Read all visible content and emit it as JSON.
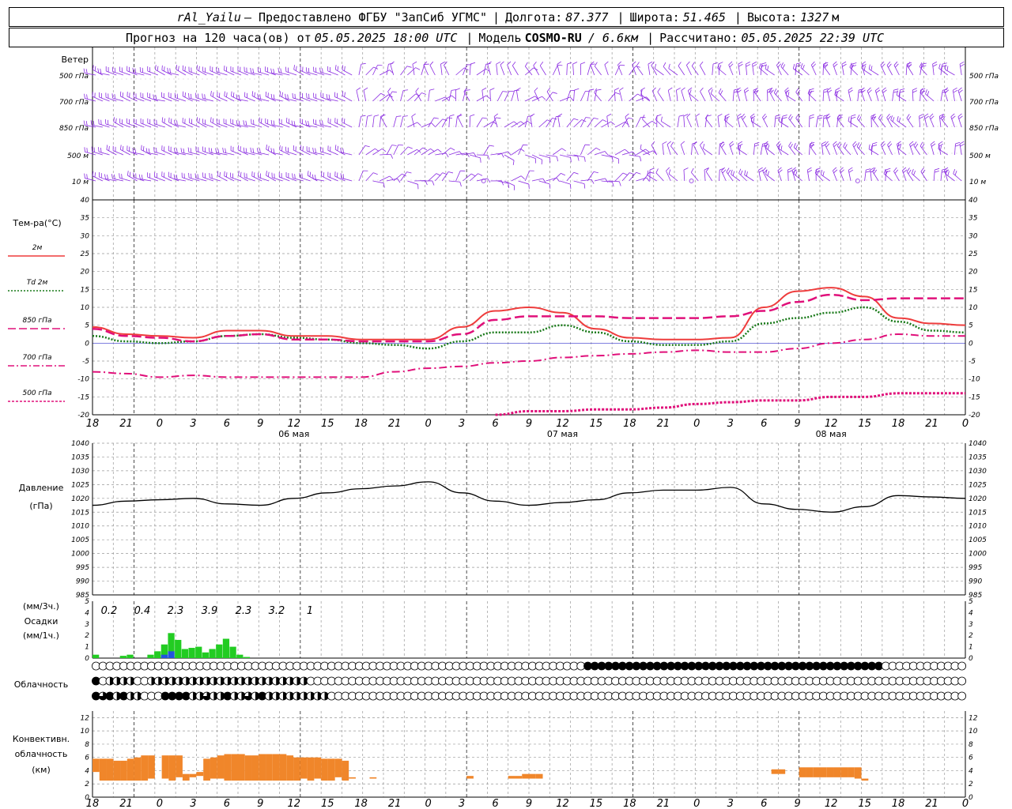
{
  "header": {
    "station": "rAl_Yailu",
    "provider": "— Предоставлено ФГБУ \"ЗапСиб УГМС\"",
    "lon_label": "Долгота:",
    "lon_value": "87.377",
    "lat_label": "Широта:",
    "lat_value": "51.465",
    "alt_label": "Высота:",
    "alt_value": "1327",
    "alt_unit": "м",
    "forecast_prefix": "Прогноз на 120 часа(ов) от",
    "forecast_start": "05.05.2025 18:00 UTC",
    "model_label": "Модель",
    "model_name": "COSMO-RU",
    "model_res": "/ 6.6км",
    "calc_label": "Рассчитано:",
    "calc_time": "05.05.2025 22:39 UTC"
  },
  "colors": {
    "t2m": "#ee3c3c",
    "td": "#1a7a1a",
    "t850": "#e0107a",
    "t700": "#e0107a",
    "t500": "#e0107a",
    "pressure": "#000000",
    "wind": "#8a2be2",
    "precip": "#22cc22",
    "precip_heavy": "#2255dd",
    "conv": "#f0862a",
    "grid": "#999999",
    "zero": "#3333cc"
  },
  "x_axis": {
    "tick_labels": [
      "18",
      "21",
      "0",
      "3",
      "6",
      "9",
      "12",
      "15",
      "18",
      "21",
      "0",
      "3",
      "6",
      "9",
      "12",
      "15",
      "18",
      "21",
      "0",
      "3",
      "6",
      "9",
      "12",
      "15",
      "18",
      "21",
      "0"
    ],
    "day_labels": [
      "06 мая",
      "07 мая",
      "08 мая"
    ]
  },
  "wind_panel": {
    "title": "Ветер",
    "levels": [
      "500 гПа",
      "700 гПа",
      "850 гПа",
      "500 м",
      "10 м"
    ]
  },
  "temp_panel": {
    "title": "Тем-ра(°C)",
    "ticks": [
      "40",
      "35",
      "30",
      "25",
      "20",
      "15",
      "10",
      "5",
      "0",
      "-5",
      "-10",
      "-15",
      "-20"
    ],
    "legend": [
      "2м",
      "Td 2м",
      "850 гПа",
      "700 гПа",
      "500 гПа"
    ]
  },
  "pressure_panel": {
    "title": "Давление",
    "unit": "(гПа)",
    "ticks": [
      "1040",
      "1035",
      "1030",
      "1025",
      "1020",
      "1015",
      "1010",
      "1005",
      "1000",
      "995",
      "990",
      "985"
    ]
  },
  "precip_panel": {
    "unit3": "(мм/3ч.)",
    "title": "Осадки",
    "unit1": "(мм/1ч.)",
    "ticks": [
      "5",
      "4",
      "3",
      "2",
      "1",
      "0"
    ],
    "totals": [
      "0.2",
      "0.4",
      "2.3",
      "3.9",
      "2.3",
      "3.2",
      "1"
    ]
  },
  "cloud_panel": {
    "title": "Облачность"
  },
  "conv_panel": {
    "title1": "Конвективн.",
    "title2": "облачность",
    "unit": "(км)",
    "ticks": [
      "12",
      "10",
      "8",
      "6",
      "4",
      "2",
      "0"
    ]
  },
  "chart_data": {
    "type": "line",
    "x_hours": [
      0,
      3,
      6,
      9,
      12,
      15,
      18,
      21,
      24,
      27,
      30,
      33,
      36,
      39,
      42,
      45,
      48,
      51,
      54,
      57,
      60,
      63,
      66,
      69,
      72,
      75,
      78
    ],
    "series": [
      {
        "name": "2м",
        "values": [
          4.5,
          2.5,
          2.0,
          1.5,
          3.5,
          3.5,
          2.0,
          2.0,
          1.0,
          1.0,
          1.0,
          4.5,
          9.0,
          10.0,
          8.5,
          4.0,
          1.5,
          1.0,
          1.0,
          1.5,
          10.0,
          14.5,
          15.5,
          13.0,
          7.0,
          5.5,
          5.0
        ]
      },
      {
        "name": "Td 2м",
        "values": [
          2.0,
          0.5,
          0.0,
          0.5,
          2.0,
          2.5,
          1.5,
          1.0,
          0.0,
          -0.5,
          -1.5,
          0.5,
          3.0,
          3.0,
          5.0,
          3.0,
          0.5,
          -0.5,
          -0.5,
          0.5,
          5.5,
          7.0,
          8.5,
          10.0,
          6.0,
          3.5,
          3.0
        ]
      },
      {
        "name": "850 гПа",
        "values": [
          4.0,
          2.0,
          1.5,
          0.5,
          2.0,
          2.5,
          1.0,
          1.0,
          0.5,
          0.5,
          0.5,
          2.5,
          6.5,
          7.5,
          7.5,
          7.5,
          7.0,
          7.0,
          7.0,
          7.5,
          9.0,
          11.5,
          13.5,
          12.0,
          12.5,
          12.5,
          12.5
        ]
      },
      {
        "name": "700 гПа",
        "values": [
          -8.0,
          -8.5,
          -9.5,
          -9.0,
          -9.5,
          -9.5,
          -9.5,
          -9.5,
          -9.5,
          -8.0,
          -7.0,
          -6.5,
          -5.5,
          -5.0,
          -4.0,
          -3.5,
          -3.0,
          -2.5,
          -2.0,
          -2.5,
          -2.5,
          -1.5,
          0.0,
          1.0,
          2.5,
          2.0,
          2.0
        ]
      },
      {
        "name": "500 гПа",
        "values": [
          null,
          null,
          null,
          null,
          null,
          null,
          null,
          null,
          null,
          null,
          null,
          null,
          -20.0,
          -19.0,
          -19.0,
          -18.5,
          -18.5,
          -18.0,
          -17.0,
          -16.5,
          -16.0,
          -16.0,
          -15.0,
          -15.0,
          -14.0,
          -14.0,
          -14.0
        ]
      },
      {
        "name": "Давление",
        "values": [
          1017.5,
          1019.0,
          1019.5,
          1020.0,
          1018.0,
          1017.5,
          1020.0,
          1022.0,
          1023.5,
          1024.5,
          1026.0,
          1022.0,
          1019.0,
          1017.5,
          1018.5,
          1019.5,
          1022.0,
          1023.0,
          1023.0,
          1024.0,
          1018.0,
          1016.0,
          1015.0,
          1017.0,
          1021.0,
          1020.5,
          1020.0
        ]
      }
    ],
    "precip_1h": [
      0.3,
      0,
      0,
      0,
      0.2,
      0.3,
      0,
      0,
      0.3,
      0.6,
      1.2,
      2.2,
      1.6,
      0.8,
      0.9,
      1.0,
      0.5,
      0.8,
      1.2,
      1.7,
      1.0,
      0.3,
      0.1,
      0,
      0,
      0,
      0,
      0,
      0,
      0,
      0,
      0,
      0,
      0,
      0,
      0,
      0,
      0,
      0,
      0,
      0,
      0,
      0,
      0,
      0,
      0,
      0,
      0,
      0,
      0,
      0,
      0,
      0,
      0,
      0,
      0,
      0,
      0,
      0,
      0,
      0,
      0,
      0,
      0,
      0,
      0,
      0,
      0,
      0,
      0,
      0,
      0,
      0,
      0,
      0,
      0,
      0,
      0
    ],
    "precip_heavy_1h": [
      0,
      0,
      0,
      0,
      0,
      0,
      0,
      0,
      0,
      0,
      0.3,
      0.6,
      0,
      0,
      0,
      0,
      0,
      0,
      0,
      0,
      0,
      0,
      0,
      0,
      0,
      0,
      0,
      0,
      0,
      0,
      0,
      0,
      0,
      0,
      0,
      0,
      0,
      0,
      0,
      0,
      0,
      0,
      0,
      0,
      0,
      0,
      0,
      0,
      0,
      0,
      0,
      0,
      0,
      0,
      0,
      0,
      0,
      0,
      0,
      0,
      0,
      0,
      0,
      0,
      0,
      0,
      0,
      0,
      0,
      0,
      0,
      0,
      0,
      0,
      0,
      0,
      0,
      0
    ],
    "conv_cloud_km": [
      [
        3.8,
        5.8
      ],
      [
        2.5,
        5.8
      ],
      [
        2.5,
        5.8
      ],
      [
        2.5,
        5.5
      ],
      [
        2.5,
        5.5
      ],
      [
        2.5,
        5.8
      ],
      [
        2.5,
        6.0
      ],
      [
        2.5,
        6.3
      ],
      [
        2.8,
        6.3
      ],
      [
        3.5,
        3.5
      ],
      [
        2.8,
        6.3
      ],
      [
        2.5,
        6.3
      ],
      [
        3.0,
        6.3
      ],
      [
        2.5,
        3.5
      ],
      [
        3.0,
        3.5
      ],
      [
        3.2,
        3.8
      ],
      [
        2.5,
        5.8
      ],
      [
        2.8,
        6.0
      ],
      [
        2.8,
        6.3
      ],
      [
        2.5,
        6.5
      ],
      [
        2.5,
        6.5
      ],
      [
        2.5,
        6.5
      ],
      [
        2.5,
        6.3
      ],
      [
        2.5,
        6.3
      ],
      [
        2.5,
        6.5
      ],
      [
        2.5,
        6.5
      ],
      [
        2.5,
        6.5
      ],
      [
        2.5,
        6.5
      ],
      [
        2.5,
        6.3
      ],
      [
        2.5,
        6.0
      ],
      [
        2.8,
        6.0
      ],
      [
        2.5,
        6.0
      ],
      [
        2.8,
        6.0
      ],
      [
        2.5,
        5.8
      ],
      [
        2.5,
        5.8
      ],
      [
        3.0,
        5.8
      ],
      [
        2.5,
        5.5
      ],
      [
        2.8,
        3.0
      ],
      [
        0,
        0
      ],
      [
        0,
        0
      ],
      [
        2.8,
        3.0
      ],
      [
        0,
        0
      ],
      [
        0,
        0
      ],
      [
        0,
        0
      ],
      [
        0,
        0
      ],
      [
        0,
        0
      ],
      [
        0,
        0
      ],
      [
        0,
        0
      ],
      [
        0,
        0
      ],
      [
        0,
        0
      ],
      [
        0,
        0
      ],
      [
        0,
        0
      ],
      [
        0,
        0
      ],
      [
        0,
        0
      ],
      [
        0,
        0
      ],
      [
        0,
        0
      ],
      [
        0,
        0
      ],
      [
        0,
        0
      ],
      [
        0,
        0
      ],
      [
        0,
        0
      ],
      [
        0,
        0
      ],
      [
        0,
        0
      ],
      [
        0,
        0
      ],
      [
        0,
        0
      ],
      [
        0,
        0
      ],
      [
        0,
        0
      ],
      [
        0,
        0
      ],
      [
        0,
        0
      ],
      [
        0,
        0
      ],
      [
        0,
        0
      ],
      [
        0,
        0
      ],
      [
        0,
        0
      ],
      [
        0,
        0
      ],
      [
        0,
        0
      ],
      [
        0,
        0
      ],
      [
        0,
        0
      ],
      [
        0,
        0
      ],
      [
        0,
        0
      ]
    ],
    "conv_extra": [
      {
        "hour": 54,
        "bot": 2.8,
        "top": 3.2
      },
      {
        "hour": 60,
        "bot": 2.8,
        "top": 3.2
      },
      {
        "hour": 61,
        "bot": 2.8,
        "top": 3.2
      },
      {
        "hour": 62,
        "bot": 2.8,
        "top": 3.5
      },
      {
        "hour": 63,
        "bot": 2.8,
        "top": 3.5
      },
      {
        "hour": 64,
        "bot": 2.8,
        "top": 3.5
      },
      {
        "hour": 98,
        "bot": 3.5,
        "top": 4.2
      },
      {
        "hour": 99,
        "bot": 3.5,
        "top": 4.2
      },
      {
        "hour": 102,
        "bot": 3.0,
        "top": 4.5
      },
      {
        "hour": 103,
        "bot": 3.0,
        "top": 4.5
      },
      {
        "hour": 104,
        "bot": 3.0,
        "top": 4.5
      },
      {
        "hour": 105,
        "bot": 3.0,
        "top": 4.5
      },
      {
        "hour": 106,
        "bot": 3.0,
        "top": 4.5
      },
      {
        "hour": 107,
        "bot": 3.0,
        "top": 4.5
      },
      {
        "hour": 108,
        "bot": 3.0,
        "top": 4.5
      },
      {
        "hour": 109,
        "bot": 3.0,
        "top": 4.5
      },
      {
        "hour": 110,
        "bot": 2.8,
        "top": 4.5
      },
      {
        "hour": 111,
        "bot": 2.5,
        "top": 2.8
      }
    ],
    "cloud_rows": [
      "000000000000000000000000000000000000000000000000000000000000000000000004444444444444444444444444444444444444444444000000000000000000",
      "402222002222222222222222222222200000000000000000000000000000000000000000000000000000000000000000000000000000000000000000000000000000",
      "4342422000444422322422324222222222000000000000000000000000000000000000000000000000000000000000000000000000000000000000000000000000000"
    ],
    "wind_levels": [
      "500 гПа",
      "700 гПа",
      "850 гПа",
      "500 м",
      "10 м"
    ]
  }
}
